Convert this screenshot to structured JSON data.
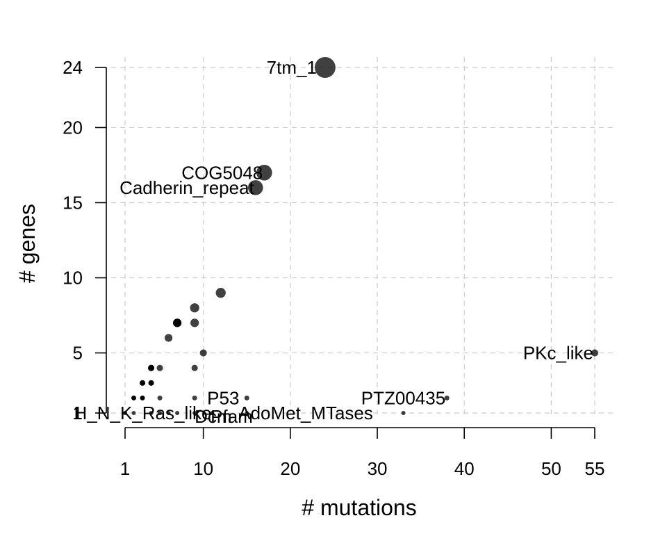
{
  "chart_data": {
    "type": "scatter",
    "xlabel": "# mutations",
    "ylabel": "# genes",
    "xlim": [
      1,
      55
    ],
    "ylim": [
      1,
      24
    ],
    "xticks": [
      1,
      10,
      20,
      30,
      40,
      50,
      55
    ],
    "yticks": [
      1,
      5,
      10,
      15,
      20,
      24
    ],
    "grid": true,
    "point_color": "#000000",
    "points": [
      {
        "x": 24,
        "y": 24,
        "label": "7tm_1"
      },
      {
        "x": 17,
        "y": 17,
        "label": "COG5048"
      },
      {
        "x": 16,
        "y": 16,
        "label": "Cadherin_repeat"
      },
      {
        "x": 12,
        "y": 9
      },
      {
        "x": 9,
        "y": 8
      },
      {
        "x": 7,
        "y": 7
      },
      {
        "x": 9,
        "y": 7
      },
      {
        "x": 6,
        "y": 6
      },
      {
        "x": 10,
        "y": 5
      },
      {
        "x": 55,
        "y": 5,
        "label": "PKc_like"
      },
      {
        "x": 4,
        "y": 4
      },
      {
        "x": 5,
        "y": 4
      },
      {
        "x": 9,
        "y": 4
      },
      {
        "x": 3,
        "y": 3
      },
      {
        "x": 4,
        "y": 3
      },
      {
        "x": 2,
        "y": 2
      },
      {
        "x": 3,
        "y": 2
      },
      {
        "x": 5,
        "y": 2
      },
      {
        "x": 9,
        "y": 2,
        "label": "P53"
      },
      {
        "x": 15,
        "y": 2
      },
      {
        "x": 38,
        "y": 2,
        "label": "PTZ00435"
      },
      {
        "x": 1,
        "y": 1
      },
      {
        "x": 2,
        "y": 1,
        "label": "H_N_K_Ras_like"
      },
      {
        "x": 4,
        "y": 1
      },
      {
        "x": 5,
        "y": 1
      },
      {
        "x": 6,
        "y": 1
      },
      {
        "x": 7,
        "y": 1
      },
      {
        "x": 9,
        "y": 1,
        "label": "Dcm"
      },
      {
        "x": 11,
        "y": 1,
        "label": "Pfam"
      },
      {
        "x": 15,
        "y": 1,
        "label": "AdoMet_MTases"
      },
      {
        "x": 33,
        "y": 1
      }
    ]
  }
}
